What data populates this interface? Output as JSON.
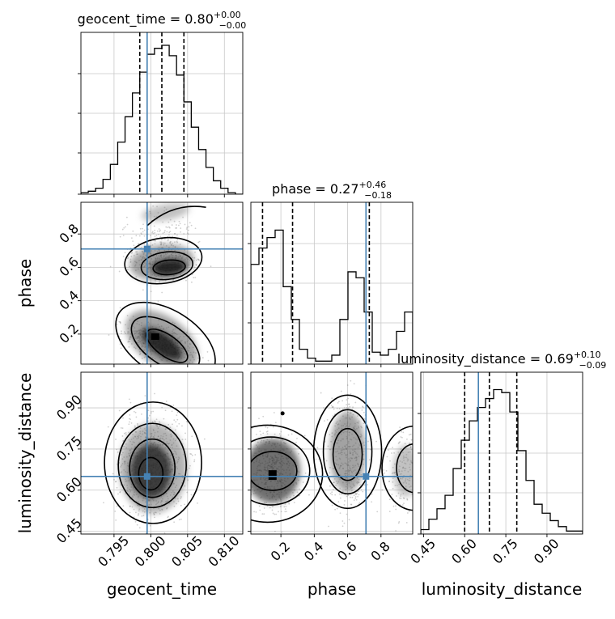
{
  "chart_data": {
    "type": "corner",
    "parameters": [
      "geocent_time",
      "phase",
      "luminosity_distance"
    ],
    "truth": {
      "geocent_time": 0.7995,
      "phase": 0.71,
      "luminosity_distance": 0.65
    },
    "truth_color": "#4682b4",
    "ranges": {
      "geocent_time": [
        0.7905,
        0.8125
      ],
      "phase": [
        0.02,
        0.99
      ],
      "luminosity_distance": [
        0.44,
        1.03
      ]
    },
    "titles": [
      {
        "label": "geocent_time = 0.80",
        "plus": "+0.00",
        "minus": "−0.00"
      },
      {
        "label": "phase = 0.27",
        "plus": "+0.46",
        "minus": "−0.18"
      },
      {
        "label": "luminosity_distance = 0.69",
        "plus": "+0.10",
        "minus": "−0.09"
      }
    ],
    "axis_labels": {
      "x": [
        "geocent_time",
        "phase",
        "luminosity_distance"
      ],
      "y": [
        "phase",
        "luminosity_distance"
      ]
    },
    "ticks": {
      "geocent_time": {
        "values": [
          0.795,
          0.8,
          0.805,
          0.81
        ],
        "labels": [
          "0.795",
          "0.800",
          "0.805",
          "0.810"
        ]
      },
      "phase": {
        "values": [
          0.2,
          0.4,
          0.6,
          0.8
        ],
        "labels": [
          "0.2",
          "0.4",
          "0.6",
          "0.8"
        ]
      },
      "luminosity_distance": {
        "values": [
          0.45,
          0.6,
          0.75,
          0.9
        ],
        "labels": [
          "0.45",
          "0.60",
          "0.75",
          "0.90"
        ]
      }
    },
    "quantiles": {
      "geocent_time": [
        0.7985,
        0.8015,
        0.8045
      ],
      "phase": [
        0.09,
        0.27,
        0.73
      ],
      "luminosity_distance": [
        0.6,
        0.69,
        0.79
      ]
    },
    "histograms": {
      "geocent_time": {
        "edges": [
          0.7905,
          0.7915,
          0.7925,
          0.7935,
          0.7945,
          0.7955,
          0.7965,
          0.7975,
          0.7985,
          0.7995,
          0.8005,
          0.8015,
          0.8025,
          0.8035,
          0.8045,
          0.8055,
          0.8065,
          0.8075,
          0.8085,
          0.8095,
          0.8105,
          0.8115,
          0.8125
        ],
        "counts": [
          0.01,
          0.02,
          0.04,
          0.1,
          0.2,
          0.35,
          0.52,
          0.68,
          0.82,
          0.94,
          0.98,
          1.0,
          0.93,
          0.8,
          0.62,
          0.45,
          0.3,
          0.18,
          0.09,
          0.04,
          0.01,
          0.0
        ]
      },
      "phase": {
        "edges": [
          0.02,
          0.0685,
          0.117,
          0.1655,
          0.214,
          0.2625,
          0.311,
          0.3595,
          0.408,
          0.4565,
          0.505,
          0.5535,
          0.602,
          0.6505,
          0.699,
          0.7475,
          0.796,
          0.8445,
          0.893,
          0.9415,
          0.99
        ],
        "counts": [
          0.67,
          0.78,
          0.85,
          0.9,
          0.52,
          0.3,
          0.1,
          0.04,
          0.02,
          0.02,
          0.06,
          0.3,
          0.62,
          0.58,
          0.35,
          0.08,
          0.06,
          0.1,
          0.22,
          0.35
        ]
      },
      "luminosity_distance": {
        "edges": [
          0.44,
          0.4695,
          0.499,
          0.5285,
          0.558,
          0.5875,
          0.617,
          0.6465,
          0.676,
          0.7055,
          0.735,
          0.7645,
          0.794,
          0.8235,
          0.853,
          0.8825,
          0.912,
          0.9415,
          0.971,
          1.0005,
          1.03
        ],
        "counts": [
          0.03,
          0.1,
          0.17,
          0.26,
          0.44,
          0.63,
          0.76,
          0.85,
          0.91,
          0.97,
          0.95,
          0.82,
          0.56,
          0.36,
          0.2,
          0.14,
          0.09,
          0.05,
          0.02,
          0.02
        ]
      }
    },
    "joint_modes": [
      {
        "x_param": "geocent_time",
        "y_param": "phase",
        "x": 0.8015,
        "y": 0.62,
        "note": "upper mode"
      },
      {
        "x_param": "geocent_time",
        "y_param": "phase",
        "x": 0.8015,
        "y": 0.15,
        "note": "lower mode"
      },
      {
        "x_param": "geocent_time",
        "y_param": "luminosity_distance",
        "x": 0.8,
        "y": 0.67
      },
      {
        "x_param": "phase",
        "y_param": "luminosity_distance",
        "x": 0.15,
        "y": 0.67
      },
      {
        "x_param": "phase",
        "y_param": "luminosity_distance",
        "x": 0.58,
        "y": 0.72
      }
    ]
  }
}
